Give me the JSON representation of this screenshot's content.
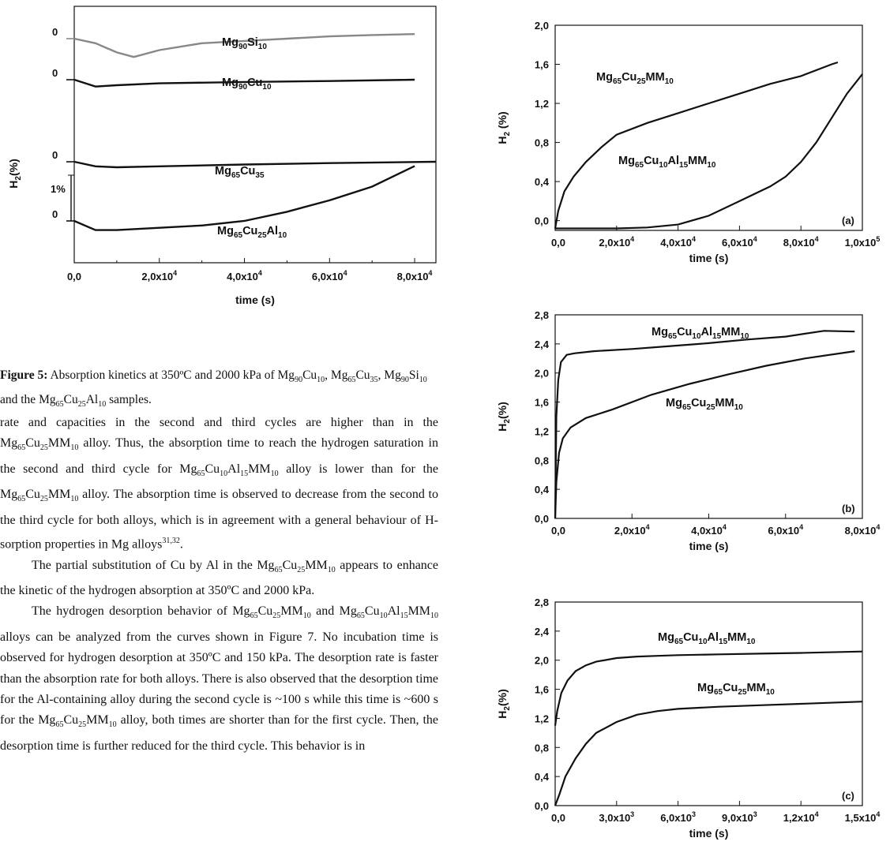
{
  "figure5": {
    "curve_labels": [
      "Mg90Si10",
      "Mg90Cu10",
      "Mg65Cu35",
      "Mg65Cu25Al10"
    ],
    "baseline_label": "0",
    "scale_bar_label": "1%",
    "ylabel": "H2(%)",
    "xlabel": "time (s)",
    "x_ticks": [
      "0,0",
      "2,0x10^4",
      "4,0x10^4",
      "6,0x10^4",
      "8,0x10^4"
    ],
    "caption_label": "Figure 5:",
    "caption_text": "Absorption kinetics at 350ºC and 2000 kPa of Mg90Cu10, Mg65Cu35, Mg90Si10 and the Mg65Cu25Al10 samples."
  },
  "paragraphs": [
    "rate and capacities in the second and third cycles are higher than in the Mg65Cu25MM10 alloy. Thus, the absorption time to reach the hydrogen saturation in the second and third cycle for Mg65Cu10Al15MM10 alloy is lower than for the Mg65Cu25MM10 alloy. The absorption time is observed to decrease from the second to the third cycle for both alloys, which is in agreement with a general behaviour of H-sorption properties in Mg alloys31,32.",
    "The partial substitution of Cu by Al in the Mg65Cu25MM10 appears to enhance the kinetic of the hydrogen absorption at 350ºC and 2000 kPa.",
    "The hydrogen desorption behavior of Mg65Cu25MM10 and Mg65Cu10Al15MM10 alloys can be analyzed from the curves shown in Figure 7. No incubation time is observed for hydrogen desorption at 350ºC and 150 kPa. The desorption rate is faster than the absorption rate for both alloys. There is also observed that the desorption time for the Al-containing alloy during the second cycle is ~100 s while this time is ~600 s for the Mg65Cu25MM10 alloy, both times are shorter than for the first cycle. Then, the desorption time is further reduced for the third cycle. This behavior is in"
  ],
  "chart_data": [
    {
      "type": "line",
      "panel": "Figure 5",
      "xlabel": "time (s)",
      "ylabel": "H2(%)",
      "xlim": [
        0,
        85000
      ],
      "x_ticks": [
        0,
        20000,
        40000,
        60000,
        80000
      ],
      "stacked_offset_curves": true,
      "scale_bar": "1%",
      "series": [
        {
          "name": "Mg90Si10",
          "color": "#888888",
          "x": [
            0,
            5000,
            10000,
            14000,
            20000,
            30000,
            40000,
            50000,
            60000,
            70000,
            80000
          ],
          "y": [
            0,
            -0.1,
            -0.3,
            -0.4,
            -0.25,
            -0.1,
            -0.05,
            0.0,
            0.05,
            0.08,
            0.1
          ]
        },
        {
          "name": "Mg90Cu10",
          "color": "#111111",
          "x": [
            0,
            5000,
            10000,
            20000,
            40000,
            60000,
            80000
          ],
          "y": [
            0,
            -0.15,
            -0.12,
            -0.08,
            -0.05,
            -0.03,
            0.0
          ]
        },
        {
          "name": "Mg65Cu35",
          "color": "#111111",
          "x": [
            0,
            5000,
            10000,
            20000,
            40000,
            60000,
            85000
          ],
          "y": [
            0,
            -0.1,
            -0.12,
            -0.1,
            -0.06,
            -0.03,
            0.0
          ]
        },
        {
          "name": "Mg65Cu25Al10",
          "color": "#111111",
          "x": [
            0,
            5000,
            10000,
            20000,
            30000,
            40000,
            50000,
            60000,
            70000,
            80000
          ],
          "y": [
            0,
            -0.2,
            -0.2,
            -0.15,
            -0.1,
            0.0,
            0.2,
            0.45,
            0.75,
            1.2
          ]
        }
      ]
    },
    {
      "type": "line",
      "panel": "(a)",
      "xlabel": "time (s)",
      "ylabel": "H2 (%)",
      "xlim": [
        0,
        100000
      ],
      "ylim": [
        -0.1,
        2.0
      ],
      "x_ticks": [
        "0,0",
        "2,0x10^4",
        "4,0x10^4",
        "6,0x10^4",
        "8,0x10^4",
        "1,0x10^5"
      ],
      "y_ticks": [
        "0,0",
        "0,4",
        "0,8",
        "1,2",
        "1,6",
        "2,0"
      ],
      "series": [
        {
          "name": "Mg65Cu25MM10",
          "x": [
            0,
            1000,
            3000,
            6000,
            10000,
            15000,
            20000,
            30000,
            40000,
            50000,
            60000,
            70000,
            80000,
            90000,
            92000
          ],
          "y": [
            -0.08,
            0.1,
            0.3,
            0.45,
            0.6,
            0.75,
            0.88,
            1.0,
            1.1,
            1.2,
            1.3,
            1.4,
            1.48,
            1.6,
            1.62
          ]
        },
        {
          "name": "Mg65Cu10Al15MM10",
          "x": [
            0,
            10000,
            20000,
            30000,
            40000,
            50000,
            60000,
            70000,
            75000,
            80000,
            85000,
            90000,
            95000,
            100000
          ],
          "y": [
            -0.08,
            -0.08,
            -0.08,
            -0.07,
            -0.04,
            0.05,
            0.2,
            0.35,
            0.45,
            0.6,
            0.8,
            1.05,
            1.3,
            1.5
          ]
        }
      ]
    },
    {
      "type": "line",
      "panel": "(b)",
      "xlabel": "time (s)",
      "ylabel": "H2(%)",
      "xlim": [
        0,
        80000
      ],
      "ylim": [
        0,
        2.8
      ],
      "x_ticks": [
        "0,0",
        "2,0x10^4",
        "4,0x10^4",
        "6,0x10^4",
        "8,0x10^4"
      ],
      "y_ticks": [
        "0,0",
        "0,4",
        "0,8",
        "1,2",
        "1,6",
        "2,0",
        "2,4",
        "2,8"
      ],
      "series": [
        {
          "name": "Mg65Cu10Al15MM10",
          "x": [
            0,
            300,
            800,
            1500,
            3000,
            5000,
            10000,
            20000,
            30000,
            40000,
            50000,
            60000,
            70000,
            78000
          ],
          "y": [
            0,
            1.4,
            1.9,
            2.15,
            2.25,
            2.27,
            2.3,
            2.33,
            2.37,
            2.41,
            2.46,
            2.5,
            2.58,
            2.57
          ]
        },
        {
          "name": "Mg65Cu25MM10",
          "x": [
            0,
            300,
            1000,
            2000,
            4000,
            8000,
            15000,
            25000,
            35000,
            45000,
            55000,
            65000,
            78000
          ],
          "y": [
            0,
            0.5,
            0.9,
            1.1,
            1.25,
            1.38,
            1.5,
            1.7,
            1.85,
            1.98,
            2.1,
            2.2,
            2.3
          ]
        }
      ]
    },
    {
      "type": "line",
      "panel": "(c)",
      "xlabel": "time (s)",
      "ylabel": "H2(%)",
      "xlim": [
        0,
        15000
      ],
      "ylim": [
        0,
        2.8
      ],
      "x_ticks": [
        "0,0",
        "3,0x10^3",
        "6,0x10^3",
        "9,0x10^3",
        "1,2x10^4",
        "1,5x10^4"
      ],
      "y_ticks": [
        "0,0",
        "0,4",
        "0,8",
        "1,2",
        "1,6",
        "2,0",
        "2,4",
        "2,8"
      ],
      "series": [
        {
          "name": "Mg65Cu10Al15MM10",
          "x": [
            0,
            100,
            300,
            600,
            1000,
            1500,
            2000,
            3000,
            4000,
            5000,
            6000,
            8000,
            10000,
            12000,
            15000
          ],
          "y": [
            1.1,
            1.3,
            1.55,
            1.72,
            1.85,
            1.93,
            1.98,
            2.03,
            2.05,
            2.06,
            2.07,
            2.08,
            2.09,
            2.1,
            2.12
          ]
        },
        {
          "name": "Mg65Cu25MM10",
          "x": [
            0,
            200,
            500,
            1000,
            1500,
            2000,
            3000,
            4000,
            5000,
            6000,
            8000,
            10000,
            12000,
            15000
          ],
          "y": [
            0,
            0.15,
            0.4,
            0.65,
            0.85,
            1.0,
            1.15,
            1.25,
            1.3,
            1.33,
            1.36,
            1.38,
            1.4,
            1.43
          ]
        }
      ]
    }
  ]
}
